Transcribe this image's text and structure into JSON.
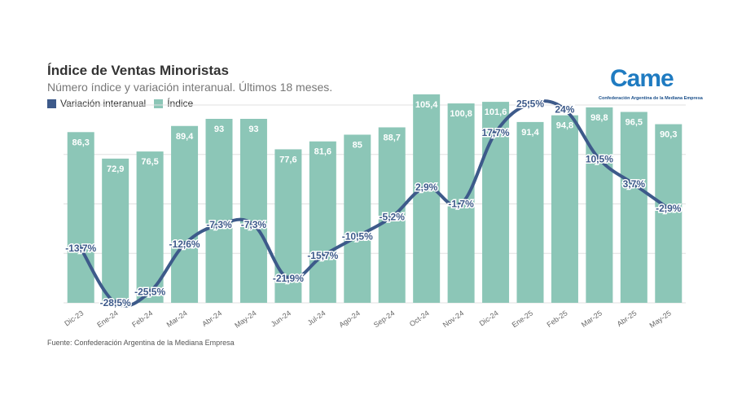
{
  "title": "Índice de Ventas Minoristas",
  "subtitle": "Número índice y variación interanual. Últimos 18 meses.",
  "source": "Fuente: Confederación Argentina de la Mediana Empresa",
  "logo": {
    "word": "Came",
    "tagline": "Confederación Argentina de la Mediana Empresa"
  },
  "colors": {
    "bar": "#8cc6b7",
    "line": "#3d5a8a",
    "label_bar": "#ffffff",
    "grid": "#e0e0e0",
    "brand": "#1f7bc1"
  },
  "chart_data": {
    "type": "bar",
    "categories": [
      "Dic-23",
      "Ene-24",
      "Feb-24",
      "Mar-24",
      "Abr-24",
      "May-24",
      "Jun-24",
      "Jul-24",
      "Ago-24",
      "Sep-24",
      "Oct-24",
      "Nov-24",
      "Dic-24",
      "Ene-25",
      "Feb-25",
      "Mar-25",
      "Abr-25",
      "May-25"
    ],
    "series": [
      {
        "name": "Índice",
        "type": "bar",
        "values": [
          86.3,
          72.9,
          76.5,
          89.4,
          93,
          93,
          77.6,
          81.6,
          85,
          88.7,
          105.4,
          100.8,
          101.6,
          91.4,
          94.8,
          98.8,
          96.5,
          90.3
        ],
        "labels": [
          "86,3",
          "72,9",
          "76,5",
          "89,4",
          "93",
          "93",
          "77,6",
          "81,6",
          "85",
          "88,7",
          "105,4",
          "100,8",
          "101,6",
          "91,4",
          "94,8",
          "98,8",
          "96,5",
          "90,3"
        ]
      },
      {
        "name": "Variación interanual",
        "type": "line",
        "values": [
          -13.7,
          -28.5,
          -25.5,
          -12.6,
          -7.3,
          -7.3,
          -21.9,
          -15.7,
          -10.5,
          -5.2,
          2.9,
          -1.7,
          17.7,
          25.5,
          24,
          10.5,
          3.7,
          -2.9
        ],
        "labels": [
          "-13,7%",
          "-28,5%",
          "-25,5%",
          "-12,6%",
          "-7,3%",
          "-7,3%",
          "-21,9%",
          "-15,7%",
          "-10,5%",
          "-5,2%",
          "2,9%",
          "-1,7%",
          "17,7%",
          "25,5%",
          "24%",
          "10,5%",
          "3,7%",
          "-2,9%"
        ]
      }
    ],
    "legend": [
      "Variación interanual",
      "Índice"
    ],
    "legend_position": "top-left",
    "grid": true
  }
}
